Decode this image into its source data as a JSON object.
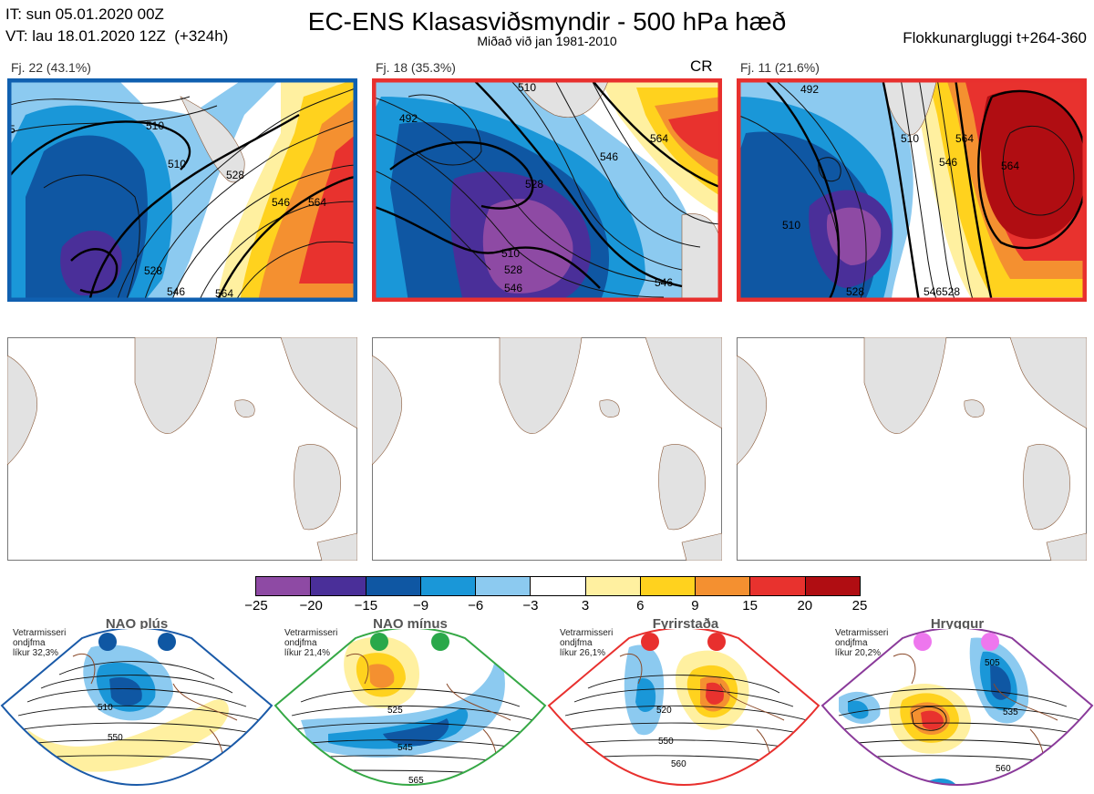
{
  "header": {
    "it_line": "IT: sun 05.01.2020 00Z",
    "vt_line": "VT: lau 18.01.2020 12Z  (+324h)",
    "title": "EC-ENS Klasasviðsmyndir - 500 hPa hæð",
    "subtitle": "Miðað við jan 1981-2010",
    "window": "Flokkunargluggi t+264-360"
  },
  "clusters": [
    {
      "label": "Fj. 22 (43.1%)",
      "tag": "",
      "frame_color": "#1060b0",
      "contour_labels": [
        "510",
        "510",
        "528",
        "546",
        "564",
        "528",
        "546",
        "564",
        "5"
      ]
    },
    {
      "label": "Fj. 18 (35.3%)",
      "tag": "CR",
      "frame_color": "#e8302e",
      "contour_labels": [
        "510",
        "492",
        "528",
        "546",
        "510",
        "528",
        "546",
        "546",
        "564"
      ]
    },
    {
      "label": "Fj. 11 (21.6%)",
      "tag": "",
      "frame_color": "#e8302e",
      "contour_labels": [
        "492",
        "510",
        "510",
        "528",
        "546",
        "564",
        "546",
        "528",
        "564"
      ]
    }
  ],
  "colorbar": {
    "colors": [
      "#8e4aa4",
      "#4a2f99",
      "#0f57a3",
      "#1a97d8",
      "#8ccaf0",
      "#ffffff",
      "#fff0a0",
      "#ffd21e",
      "#f49030",
      "#e8322e",
      "#b00d12"
    ],
    "ticks": [
      "−25",
      "−20",
      "−15",
      "−9",
      "−6",
      "−3",
      "3",
      "6",
      "9",
      "15",
      "20",
      "25"
    ]
  },
  "regimes": [
    {
      "title": "NAO plús",
      "climatology": "Vetrarmisseri\nondjfma\nlíkur 32,3%",
      "frame_color": "#1a5aa8",
      "dot_color": "#0f57a3",
      "contour_labels": [
        "510",
        "550"
      ]
    },
    {
      "title": "NAO mínus",
      "climatology": "Vetrarmisseri\nondjfma\nlíkur 21,4%",
      "frame_color": "#35a845",
      "dot_color": "#2aa84a",
      "contour_labels": [
        "525",
        "545",
        "565"
      ]
    },
    {
      "title": "Fyrirstaða",
      "climatology": "Vetrarmisseri\nondjfma\nlíkur 26,1%",
      "frame_color": "#e8302e",
      "dot_color": "#e8302e",
      "contour_labels": [
        "520",
        "550",
        "560"
      ]
    },
    {
      "title": "Hryggur",
      "climatology": "Vetrarmisseri\nondjfma\nlíkur 20,2%",
      "frame_color": "#8a3a9a",
      "dot_color": "#ee77ee",
      "contour_labels": [
        "505",
        "535",
        "560"
      ]
    }
  ]
}
